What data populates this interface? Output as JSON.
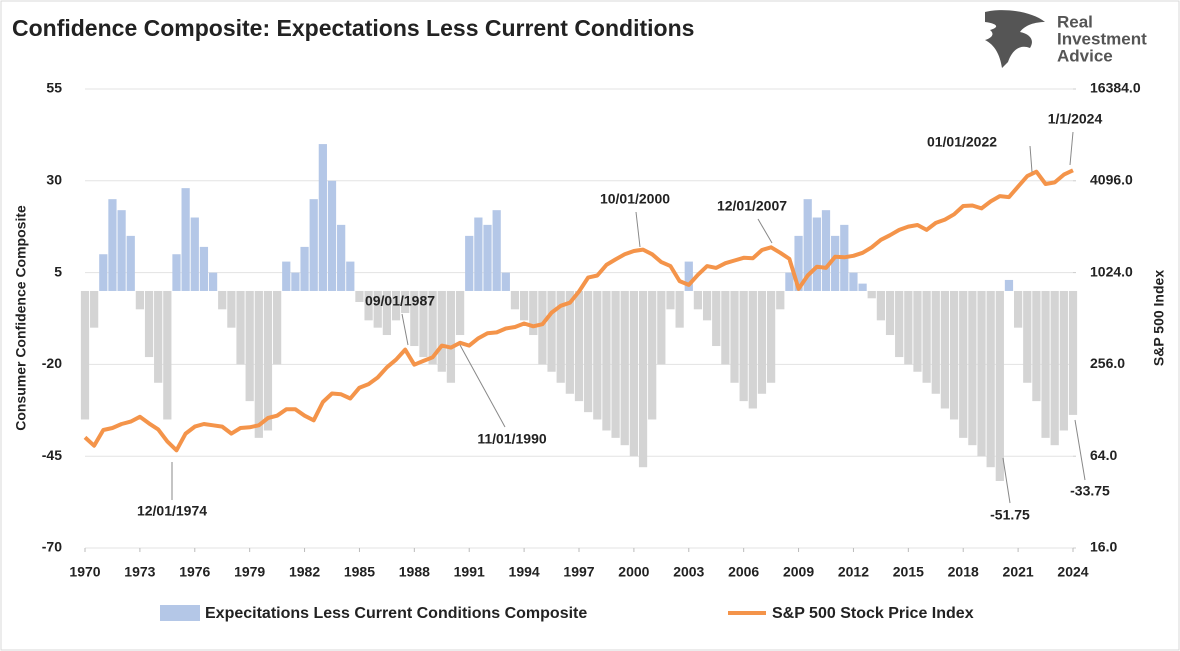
{
  "chart_data": {
    "type": "bar-line",
    "title": "Confidence Composite: Expectations Less Current Conditions",
    "logo": [
      "Real",
      "Investment",
      "Advice"
    ],
    "ylabel": "Consumer Confidence Composite",
    "y2label": "S&P 500 Index",
    "xlim": [
      1970,
      2024
    ],
    "xticks": [
      1970,
      1973,
      1976,
      1979,
      1982,
      1985,
      1988,
      1991,
      1994,
      1997,
      2000,
      2003,
      2006,
      2009,
      2012,
      2015,
      2018,
      2021,
      2024
    ],
    "ylim": [
      -70,
      55
    ],
    "yticks": [
      -70,
      -45,
      -20,
      5,
      30,
      55
    ],
    "y2lim": [
      16,
      16384
    ],
    "y2scale": "log",
    "y2ticks": [
      {
        "value": 16,
        "label": "16.0"
      },
      {
        "value": 64,
        "label": "64.0"
      },
      {
        "value": 256,
        "label": "256.0"
      },
      {
        "value": 1024,
        "label": "1024.0"
      },
      {
        "value": 4096,
        "label": "4096.0"
      },
      {
        "value": 16384,
        "label": "16384.0"
      }
    ],
    "grid": true,
    "legend": "bottom",
    "x": [
      1970,
      1970.5,
      1971,
      1971.5,
      1972,
      1972.5,
      1973,
      1973.5,
      1974,
      1974.5,
      1975,
      1975.5,
      1976,
      1976.5,
      1977,
      1977.5,
      1978,
      1978.5,
      1979,
      1979.5,
      1980,
      1980.5,
      1981,
      1981.5,
      1982,
      1982.5,
      1983,
      1983.5,
      1984,
      1984.5,
      1985,
      1985.5,
      1986,
      1986.5,
      1987,
      1987.5,
      1988,
      1988.5,
      1989,
      1989.5,
      1990,
      1990.5,
      1991,
      1991.5,
      1992,
      1992.5,
      1993,
      1993.5,
      1994,
      1994.5,
      1995,
      1995.5,
      1996,
      1996.5,
      1997,
      1997.5,
      1998,
      1998.5,
      1999,
      1999.5,
      2000,
      2000.5,
      2001,
      2001.5,
      2002,
      2002.5,
      2003,
      2003.5,
      2004,
      2004.5,
      2005,
      2005.5,
      2006,
      2006.5,
      2007,
      2007.5,
      2008,
      2008.5,
      2009,
      2009.5,
      2010,
      2010.5,
      2011,
      2011.5,
      2012,
      2012.5,
      2013,
      2013.5,
      2014,
      2014.5,
      2015,
      2015.5,
      2016,
      2016.5,
      2017,
      2017.5,
      2018,
      2018.5,
      2019,
      2019.5,
      2020,
      2020.5,
      2021,
      2021.5,
      2022,
      2022.5,
      2023,
      2023.5,
      2024
    ],
    "series": [
      {
        "name": "Expecitations Less Current Conditions Composite",
        "color": "#b4c7e7",
        "negative_color": "#d4d4d4",
        "values": [
          -35,
          -10,
          10,
          25,
          22,
          15,
          -5,
          -18,
          -25,
          -35,
          10,
          28,
          20,
          12,
          5,
          -5,
          -10,
          -20,
          -30,
          -40,
          -38,
          -20,
          8,
          5,
          12,
          25,
          40,
          30,
          18,
          8,
          -3,
          -8,
          -10,
          -12,
          -8,
          -6,
          -15,
          -18,
          -20,
          -22,
          -25,
          -12,
          15,
          20,
          18,
          22,
          5,
          -5,
          -8,
          -12,
          -20,
          -22,
          -25,
          -28,
          -30,
          -33,
          -35,
          -38,
          -40,
          -42,
          -45,
          -48,
          -35,
          -20,
          -5,
          -10,
          8,
          -5,
          -8,
          -15,
          -20,
          -25,
          -30,
          -32,
          -28,
          -25,
          -5,
          5,
          15,
          25,
          20,
          22,
          15,
          18,
          5,
          2,
          -2,
          -8,
          -12,
          -18,
          -20,
          -22,
          -25,
          -28,
          -32,
          -35,
          -40,
          -42,
          -45,
          -48,
          -51.75,
          3,
          -10,
          -25,
          -30,
          -40,
          -42,
          -38,
          -33.75
        ]
      },
      {
        "name": "S&P 500 Stock Price Index",
        "color": "#f4944a",
        "axis": "y2",
        "values": [
          85,
          75,
          95,
          98,
          104,
          108,
          116,
          105,
          96,
          80,
          70,
          90,
          100,
          104,
          102,
          100,
          90,
          98,
          99,
          102,
          114,
          118,
          130,
          130,
          118,
          110,
          145,
          165,
          163,
          153,
          180,
          190,
          210,
          245,
          275,
          320,
          255,
          270,
          285,
          340,
          330,
          355,
          340,
          380,
          410,
          415,
          440,
          450,
          475,
          455,
          470,
          560,
          620,
          650,
          770,
          950,
          980,
          1150,
          1250,
          1350,
          1420,
          1450,
          1350,
          1200,
          1130,
          900,
          850,
          990,
          1130,
          1100,
          1180,
          1230,
          1280,
          1270,
          1440,
          1500,
          1380,
          1260,
          800,
          980,
          1120,
          1100,
          1300,
          1290,
          1320,
          1380,
          1500,
          1680,
          1800,
          1950,
          2050,
          2100,
          1950,
          2170,
          2280,
          2470,
          2800,
          2820,
          2700,
          3000,
          3250,
          3200,
          3750,
          4400,
          4700,
          3900,
          4000,
          4500,
          4800
        ]
      }
    ],
    "annotations": [
      "12/01/1974",
      "09/01/1987",
      "11/01/1990",
      "10/01/2000",
      "12/01/2007",
      "01/01/2022",
      "1/1/2024",
      "-51.75",
      "-33.75"
    ]
  }
}
